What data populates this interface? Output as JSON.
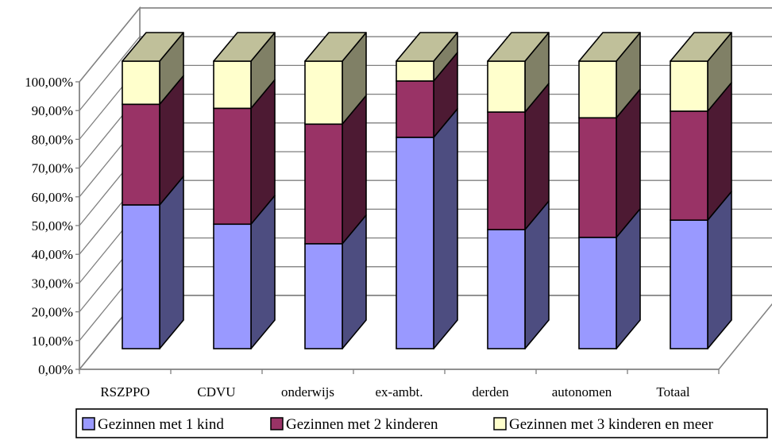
{
  "chart_data": {
    "type": "bar",
    "stacked": true,
    "three_d": true,
    "percent_stacked": true,
    "categories": [
      "RSZPPO",
      "CDVU",
      "onderwijs",
      "ex-ambt.",
      "derden",
      "autonomen",
      "Totaal"
    ],
    "series": [
      {
        "name": "Gezinnen met 1 kind",
        "values": [
          50.0,
          43.3,
          36.5,
          73.5,
          41.4,
          38.7,
          44.7
        ]
      },
      {
        "name": "Gezinnen met 2 kinderen",
        "values": [
          35.0,
          40.3,
          41.6,
          19.6,
          40.9,
          41.6,
          37.9
        ]
      },
      {
        "name": "Gezinnen met 3 kinderen en meer",
        "values": [
          15.0,
          16.4,
          21.9,
          6.9,
          17.7,
          19.7,
          17.4
        ]
      }
    ],
    "colors": {
      "series": [
        "#9999ff",
        "#993366",
        "#ffffcc"
      ],
      "series_side": [
        "#4d4d80",
        "#4d1a33",
        "#808066"
      ],
      "top": "#c0c09a",
      "wall": "#ffffff",
      "axis": "#808080"
    },
    "ylim": [
      0,
      100
    ],
    "yticks": [
      "0,00%",
      "10,00%",
      "20,00%",
      "30,00%",
      "40,00%",
      "50,00%",
      "60,00%",
      "70,00%",
      "80,00%",
      "90,00%",
      "100,00%"
    ],
    "grid": true,
    "legend": "bottom"
  }
}
